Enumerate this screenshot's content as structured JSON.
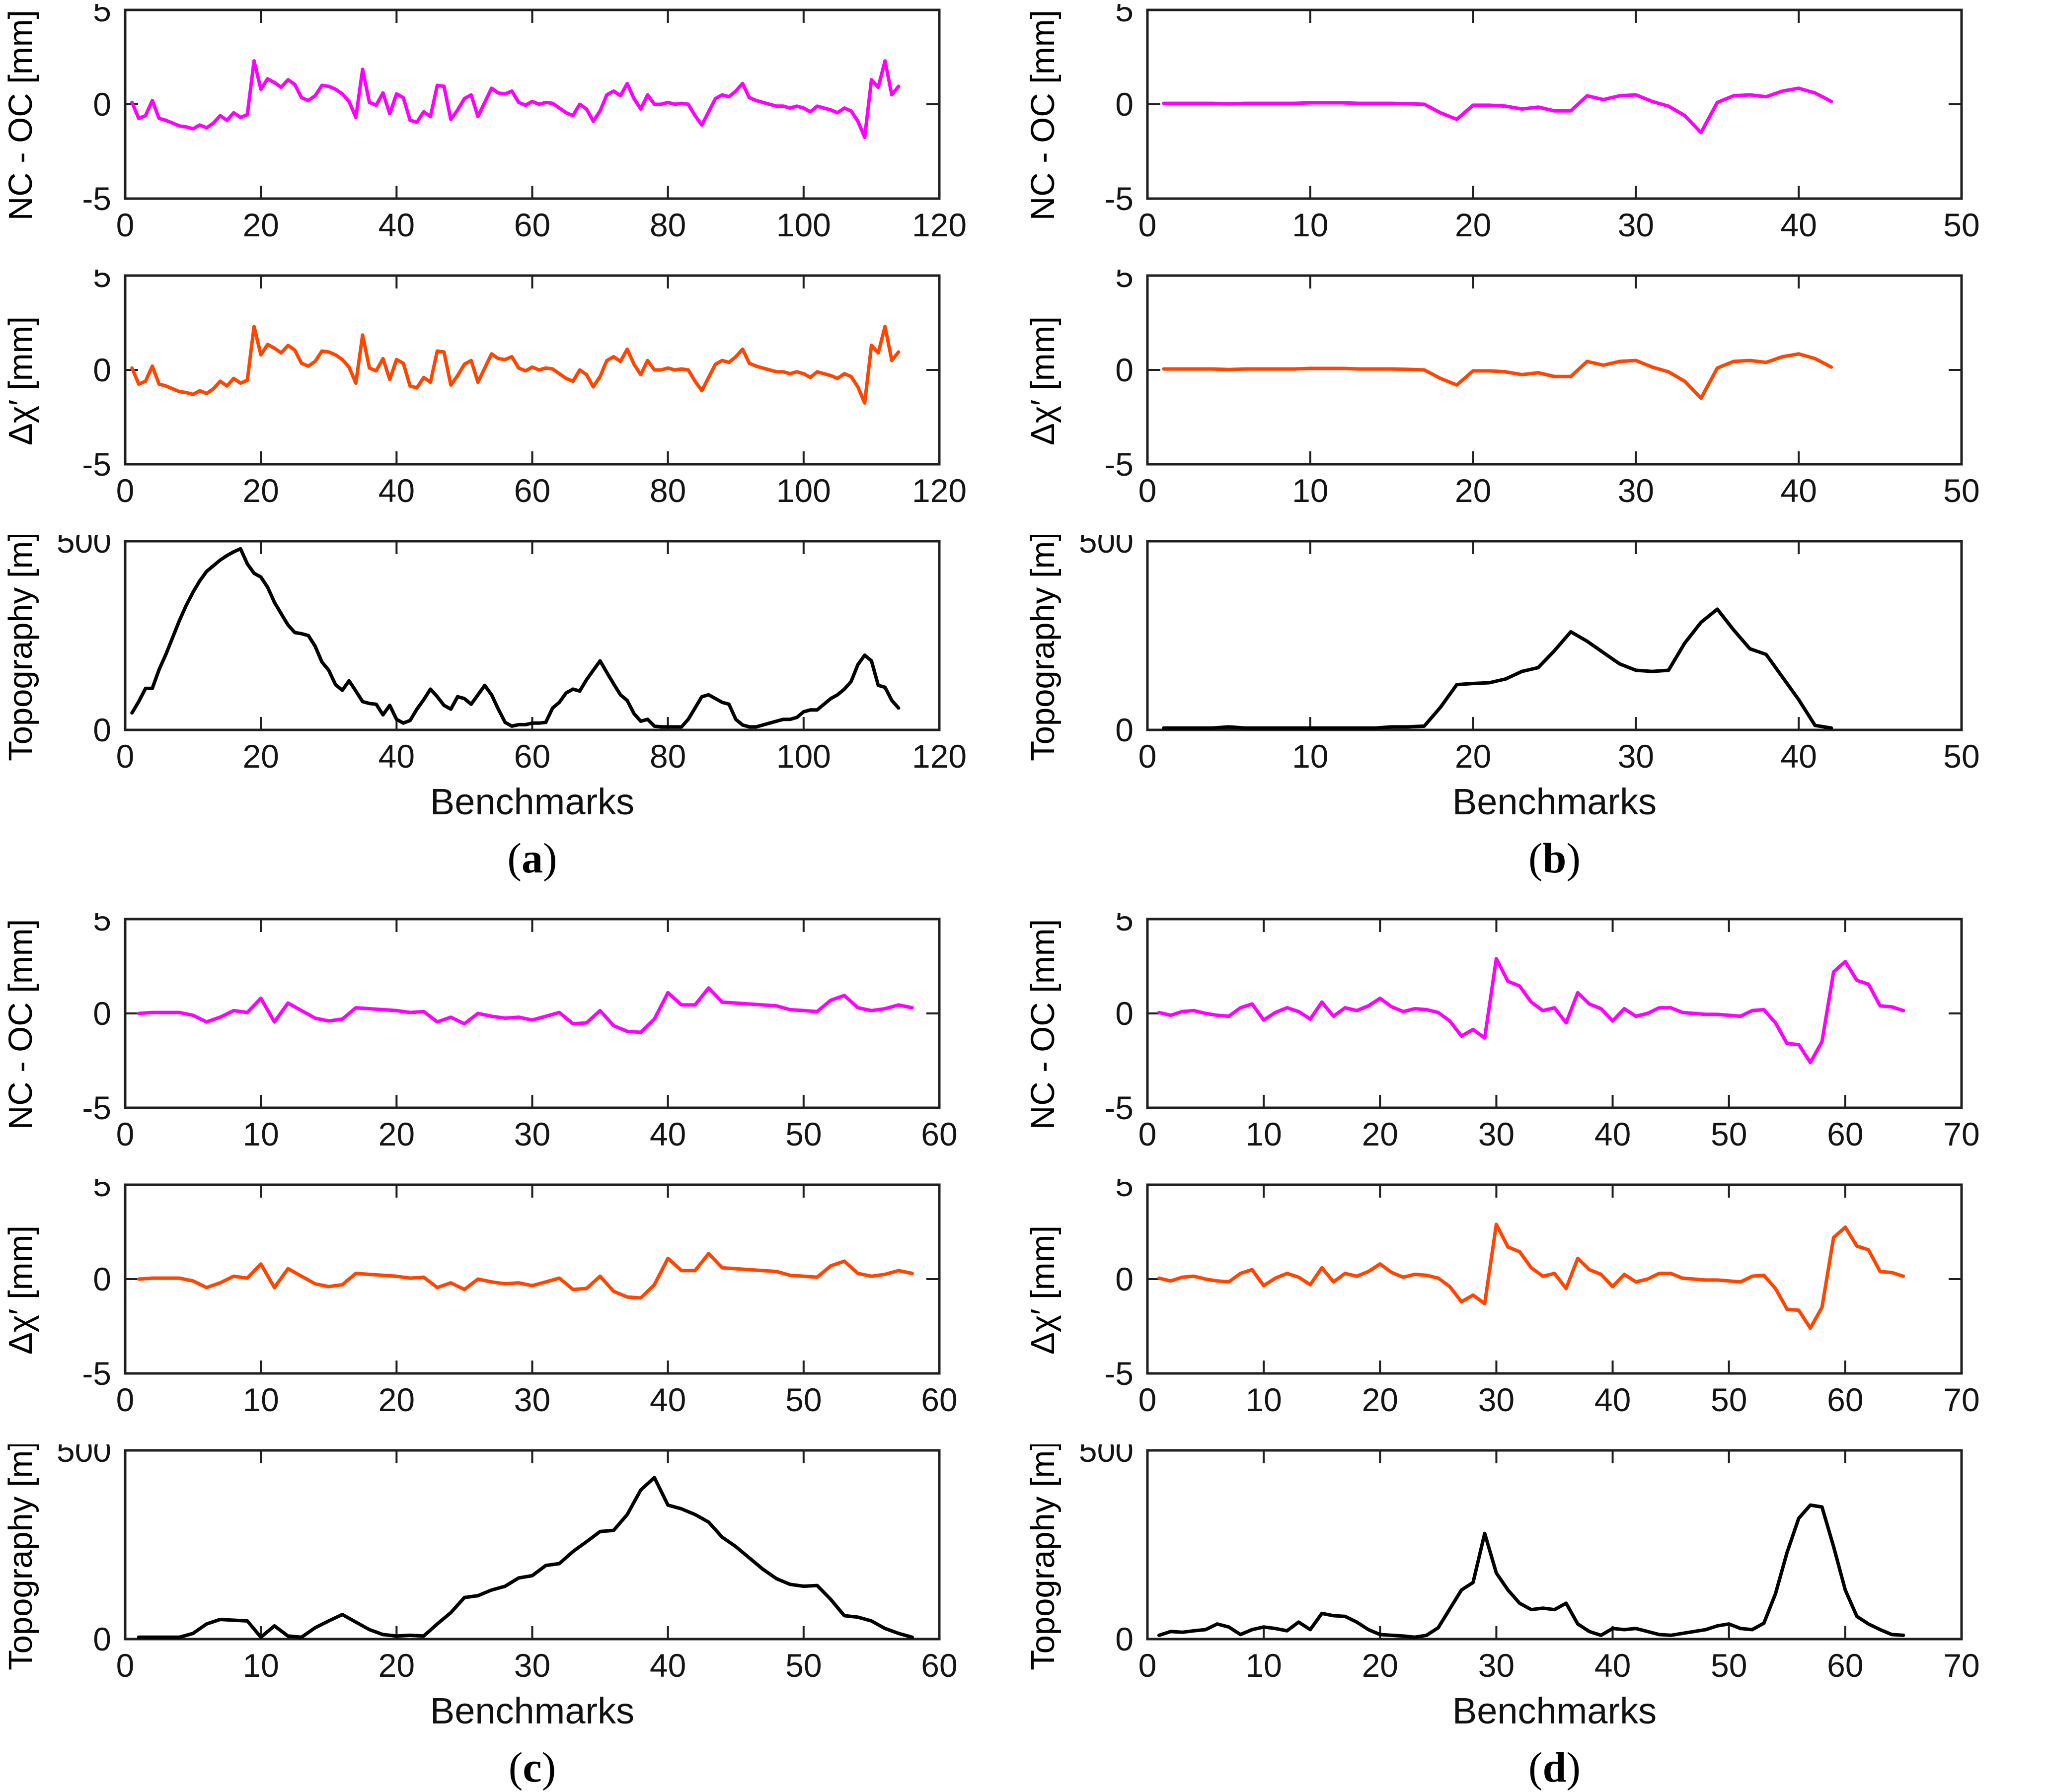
{
  "figure": {
    "colors": {
      "nc_oc_line": "#FF00FF",
      "delta_chi_line": "#FF4500",
      "topography_line": "#000000",
      "axis": "#1F1F1F",
      "text": "#141414"
    },
    "x_axis_title": "Benchmarks",
    "caption_labels": [
      "(a)",
      "(b)",
      "(c)",
      "(d)"
    ]
  },
  "chart_data": [
    {
      "id": "a",
      "label": "(a)",
      "type": "line",
      "xlabel": "Benchmarks",
      "x_start": 1,
      "x_step": 1,
      "xlim": [
        0,
        120
      ],
      "xticks": [
        0,
        20,
        40,
        60,
        80,
        100,
        120
      ],
      "subplots": [
        {
          "name": "nc-oc",
          "ylabel": "NC - OC [mm]",
          "ylim": [
            -5,
            5
          ],
          "yticks": [
            5,
            0,
            -5
          ],
          "color": "#FF00FF",
          "values": [
            0.1,
            -0.75,
            -0.6,
            0.2,
            -0.75,
            -0.85,
            -1.0,
            -1.15,
            -1.2,
            -1.3,
            -1.1,
            -1.25,
            -1.0,
            -0.6,
            -0.85,
            -0.45,
            -0.7,
            -0.55,
            2.3,
            0.8,
            1.35,
            1.15,
            0.9,
            1.3,
            1.05,
            0.35,
            0.2,
            0.45,
            1.0,
            0.95,
            0.8,
            0.55,
            0.15,
            -0.7,
            1.85,
            0.1,
            -0.05,
            0.6,
            -0.5,
            0.55,
            0.35,
            -0.85,
            -0.95,
            -0.4,
            -0.65,
            1.0,
            0.95,
            -0.8,
            -0.3,
            0.3,
            0.5,
            -0.65,
            0.1,
            0.85,
            0.6,
            0.55,
            0.7,
            0.1,
            -0.05,
            0.15,
            0.0,
            0.1,
            0.05,
            -0.2,
            -0.45,
            -0.6,
            0.0,
            -0.25,
            -0.9,
            -0.35,
            0.5,
            0.7,
            0.45,
            1.1,
            0.3,
            -0.25,
            0.5,
            0.0,
            0.0,
            0.1,
            0.0,
            0.05,
            0.0,
            -0.6,
            -1.1,
            -0.4,
            0.3,
            0.5,
            0.4,
            0.7,
            1.1,
            0.35,
            0.2,
            0.1,
            0.0,
            -0.1,
            -0.1,
            -0.2,
            -0.1,
            -0.2,
            -0.4,
            -0.1,
            -0.2,
            -0.3,
            -0.45,
            -0.2,
            -0.35,
            -0.9,
            -1.75,
            1.3,
            0.9,
            2.3,
            0.5,
            0.95
          ]
        },
        {
          "name": "delta-chi-prime",
          "ylabel": "Δχ′ [mm]",
          "ylim": [
            -5,
            5
          ],
          "yticks": [
            5,
            0,
            -5
          ],
          "color": "#FF4500",
          "values": [
            0.1,
            -0.75,
            -0.6,
            0.2,
            -0.75,
            -0.85,
            -1.0,
            -1.15,
            -1.2,
            -1.3,
            -1.1,
            -1.25,
            -1.0,
            -0.6,
            -0.85,
            -0.45,
            -0.7,
            -0.55,
            2.3,
            0.8,
            1.35,
            1.15,
            0.9,
            1.3,
            1.05,
            0.35,
            0.2,
            0.45,
            1.0,
            0.95,
            0.8,
            0.55,
            0.15,
            -0.7,
            1.85,
            0.1,
            -0.05,
            0.6,
            -0.5,
            0.55,
            0.35,
            -0.85,
            -0.95,
            -0.4,
            -0.65,
            1.0,
            0.95,
            -0.8,
            -0.3,
            0.3,
            0.5,
            -0.65,
            0.1,
            0.85,
            0.6,
            0.55,
            0.7,
            0.1,
            -0.05,
            0.15,
            0.0,
            0.1,
            0.05,
            -0.2,
            -0.45,
            -0.6,
            0.0,
            -0.25,
            -0.9,
            -0.35,
            0.5,
            0.7,
            0.45,
            1.1,
            0.3,
            -0.25,
            0.5,
            0.0,
            0.0,
            0.1,
            0.0,
            0.05,
            0.0,
            -0.6,
            -1.1,
            -0.4,
            0.3,
            0.5,
            0.4,
            0.7,
            1.1,
            0.35,
            0.2,
            0.1,
            0.0,
            -0.1,
            -0.1,
            -0.2,
            -0.1,
            -0.2,
            -0.4,
            -0.1,
            -0.2,
            -0.3,
            -0.45,
            -0.2,
            -0.35,
            -0.9,
            -1.75,
            1.3,
            0.9,
            2.3,
            0.5,
            0.95
          ]
        },
        {
          "name": "topography",
          "ylabel": "Topography [m]",
          "ylim": [
            0,
            500
          ],
          "yticks": [
            500,
            0
          ],
          "color": "#000000",
          "values": [
            45,
            75,
            110,
            110,
            160,
            200,
            245,
            290,
            330,
            365,
            395,
            420,
            435,
            450,
            462,
            472,
            480,
            440,
            415,
            405,
            378,
            338,
            308,
            278,
            258,
            255,
            250,
            222,
            180,
            158,
            120,
            105,
            130,
            103,
            75,
            70,
            68,
            40,
            65,
            28,
            18,
            25,
            55,
            80,
            108,
            88,
            65,
            55,
            88,
            83,
            68,
            93,
            118,
            93,
            55,
            20,
            10,
            14,
            14,
            18,
            18,
            20,
            58,
            73,
            98,
            108,
            103,
            133,
            158,
            183,
            152,
            122,
            93,
            78,
            43,
            23,
            28,
            10,
            8,
            8,
            8,
            8,
            28,
            58,
            88,
            93,
            83,
            73,
            68,
            28,
            13,
            8,
            8,
            13,
            18,
            23,
            28,
            28,
            33,
            48,
            53,
            53,
            68,
            83,
            93,
            108,
            128,
            173,
            198,
            183,
            118,
            113,
            78,
            58
          ]
        }
      ]
    },
    {
      "id": "b",
      "label": "(b)",
      "type": "line",
      "xlabel": "Benchmarks",
      "x_start": 1,
      "x_step": 1,
      "xlim": [
        0,
        50
      ],
      "xticks": [
        0,
        10,
        20,
        30,
        40,
        50
      ],
      "subplots": [
        {
          "name": "nc-oc",
          "ylabel": "NC - OC [mm]",
          "ylim": [
            -5,
            5
          ],
          "yticks": [
            5,
            0,
            -5
          ],
          "color": "#FF00FF",
          "values": [
            0.05,
            0.05,
            0.05,
            0.05,
            0.02,
            0.05,
            0.05,
            0.05,
            0.05,
            0.08,
            0.08,
            0.08,
            0.05,
            0.05,
            0.05,
            0.03,
            0.0,
            -0.45,
            -0.8,
            -0.05,
            -0.05,
            -0.1,
            -0.25,
            -0.15,
            -0.35,
            -0.35,
            0.45,
            0.25,
            0.45,
            0.5,
            0.15,
            -0.1,
            -0.6,
            -1.5,
            0.1,
            0.45,
            0.5,
            0.4,
            0.7,
            0.85,
            0.6,
            0.15
          ]
        },
        {
          "name": "delta-chi-prime",
          "ylabel": "Δχ′ [mm]",
          "ylim": [
            -5,
            5
          ],
          "yticks": [
            5,
            0,
            -5
          ],
          "color": "#FF4500",
          "values": [
            0.05,
            0.05,
            0.05,
            0.05,
            0.02,
            0.05,
            0.05,
            0.05,
            0.05,
            0.08,
            0.08,
            0.08,
            0.05,
            0.05,
            0.05,
            0.03,
            0.0,
            -0.45,
            -0.8,
            -0.05,
            -0.05,
            -0.1,
            -0.25,
            -0.15,
            -0.35,
            -0.35,
            0.45,
            0.25,
            0.45,
            0.5,
            0.15,
            -0.1,
            -0.6,
            -1.5,
            0.1,
            0.45,
            0.5,
            0.4,
            0.7,
            0.85,
            0.6,
            0.15
          ]
        },
        {
          "name": "topography",
          "ylabel": "Topography [m]",
          "ylim": [
            0,
            500
          ],
          "yticks": [
            500,
            0
          ],
          "color": "#000000",
          "values": [
            5,
            5,
            5,
            5,
            8,
            5,
            5,
            5,
            5,
            5,
            5,
            5,
            5,
            5,
            8,
            8,
            10,
            60,
            120,
            123,
            125,
            135,
            155,
            165,
            210,
            260,
            235,
            205,
            175,
            158,
            155,
            158,
            230,
            285,
            320,
            265,
            215,
            200,
            140,
            80,
            12,
            5
          ]
        }
      ]
    },
    {
      "id": "c",
      "label": "(c)",
      "type": "line",
      "xlabel": "Benchmarks",
      "x_start": 1,
      "x_step": 1,
      "xlim": [
        0,
        60
      ],
      "xticks": [
        0,
        10,
        20,
        30,
        40,
        50,
        60
      ],
      "subplots": [
        {
          "name": "nc-oc",
          "ylabel": "NC - OC [mm]",
          "ylim": [
            -5,
            5
          ],
          "yticks": [
            5,
            0,
            -5
          ],
          "color": "#FF00FF",
          "values": [
            0.0,
            0.05,
            0.05,
            0.05,
            -0.1,
            -0.45,
            -0.2,
            0.15,
            0.05,
            0.8,
            -0.45,
            0.55,
            0.15,
            -0.25,
            -0.4,
            -0.3,
            0.3,
            0.25,
            0.2,
            0.15,
            0.05,
            0.1,
            -0.45,
            -0.2,
            -0.55,
            0.0,
            -0.15,
            -0.25,
            -0.2,
            -0.35,
            -0.15,
            0.05,
            -0.55,
            -0.5,
            0.15,
            -0.65,
            -0.95,
            -1.0,
            -0.3,
            1.1,
            0.45,
            0.45,
            1.35,
            0.6,
            0.55,
            0.5,
            0.45,
            0.4,
            0.2,
            0.15,
            0.1,
            0.7,
            0.95,
            0.3,
            0.15,
            0.25,
            0.45,
            0.3
          ]
        },
        {
          "name": "delta-chi-prime",
          "ylabel": "Δχ′ [mm]",
          "ylim": [
            -5,
            5
          ],
          "yticks": [
            5,
            0,
            -5
          ],
          "color": "#FF4500",
          "values": [
            0.0,
            0.05,
            0.05,
            0.05,
            -0.1,
            -0.45,
            -0.2,
            0.15,
            0.05,
            0.8,
            -0.45,
            0.55,
            0.15,
            -0.25,
            -0.4,
            -0.3,
            0.3,
            0.25,
            0.2,
            0.15,
            0.05,
            0.1,
            -0.45,
            -0.2,
            -0.55,
            0.0,
            -0.15,
            -0.25,
            -0.2,
            -0.35,
            -0.15,
            0.05,
            -0.55,
            -0.5,
            0.15,
            -0.65,
            -0.95,
            -1.0,
            -0.3,
            1.1,
            0.45,
            0.45,
            1.35,
            0.6,
            0.55,
            0.5,
            0.45,
            0.4,
            0.2,
            0.15,
            0.1,
            0.7,
            0.95,
            0.3,
            0.15,
            0.25,
            0.45,
            0.3
          ]
        },
        {
          "name": "topography",
          "ylabel": "Topography [m]",
          "ylim": [
            0,
            500
          ],
          "yticks": [
            500,
            0
          ],
          "color": "#000000",
          "values": [
            5,
            5,
            5,
            5,
            15,
            40,
            52,
            50,
            48,
            5,
            35,
            8,
            5,
            30,
            48,
            65,
            45,
            25,
            12,
            8,
            10,
            8,
            40,
            70,
            110,
            115,
            130,
            140,
            162,
            168,
            195,
            200,
            232,
            258,
            285,
            288,
            330,
            395,
            428,
            355,
            345,
            330,
            310,
            270,
            245,
            215,
            185,
            160,
            145,
            140,
            142,
            105,
            62,
            58,
            48,
            28,
            15,
            5
          ]
        }
      ]
    },
    {
      "id": "d",
      "label": "(d)",
      "type": "line",
      "xlabel": "Benchmarks",
      "x_start": 1,
      "x_step": 1,
      "xlim": [
        0,
        70
      ],
      "xticks": [
        0,
        10,
        20,
        30,
        40,
        50,
        60,
        70
      ],
      "subplots": [
        {
          "name": "nc-oc",
          "ylabel": "NC - OC [mm]",
          "ylim": [
            -5,
            5
          ],
          "yticks": [
            5,
            0,
            -5
          ],
          "color": "#FF00FF",
          "values": [
            0.05,
            -0.1,
            0.1,
            0.15,
            0.0,
            -0.1,
            -0.15,
            0.3,
            0.5,
            -0.35,
            0.05,
            0.3,
            0.1,
            -0.3,
            0.6,
            -0.15,
            0.3,
            0.15,
            0.4,
            0.8,
            0.35,
            0.1,
            0.25,
            0.2,
            0.05,
            -0.4,
            -1.2,
            -0.85,
            -1.3,
            2.9,
            1.7,
            1.45,
            0.6,
            0.15,
            0.3,
            -0.5,
            1.1,
            0.5,
            0.25,
            -0.4,
            0.25,
            -0.15,
            0.0,
            0.3,
            0.3,
            0.05,
            0.0,
            -0.05,
            -0.05,
            -0.1,
            -0.15,
            0.15,
            0.2,
            -0.5,
            -1.6,
            -1.65,
            -2.6,
            -1.5,
            2.2,
            2.75,
            1.75,
            1.55,
            0.4,
            0.35,
            0.15
          ]
        },
        {
          "name": "delta-chi-prime",
          "ylabel": "Δχ′ [mm]",
          "ylim": [
            -5,
            5
          ],
          "yticks": [
            5,
            0,
            -5
          ],
          "color": "#FF4500",
          "values": [
            0.05,
            -0.1,
            0.1,
            0.15,
            0.0,
            -0.1,
            -0.15,
            0.3,
            0.5,
            -0.35,
            0.05,
            0.3,
            0.1,
            -0.3,
            0.6,
            -0.15,
            0.3,
            0.15,
            0.4,
            0.8,
            0.35,
            0.1,
            0.25,
            0.2,
            0.05,
            -0.4,
            -1.2,
            -0.85,
            -1.3,
            2.9,
            1.7,
            1.45,
            0.6,
            0.15,
            0.3,
            -0.5,
            1.1,
            0.5,
            0.25,
            -0.4,
            0.25,
            -0.15,
            0.0,
            0.3,
            0.3,
            0.05,
            0.0,
            -0.05,
            -0.05,
            -0.1,
            -0.15,
            0.15,
            0.2,
            -0.5,
            -1.6,
            -1.65,
            -2.6,
            -1.5,
            2.2,
            2.75,
            1.75,
            1.55,
            0.4,
            0.35,
            0.15
          ]
        },
        {
          "name": "topography",
          "ylabel": "Topography [m]",
          "ylim": [
            0,
            500
          ],
          "yticks": [
            500,
            0
          ],
          "color": "#000000",
          "values": [
            10,
            20,
            18,
            22,
            25,
            40,
            32,
            12,
            25,
            32,
            28,
            22,
            45,
            25,
            68,
            62,
            60,
            45,
            25,
            12,
            10,
            8,
            5,
            10,
            30,
            80,
            130,
            150,
            280,
            175,
            130,
            95,
            78,
            82,
            78,
            95,
            40,
            20,
            10,
            28,
            25,
            28,
            20,
            12,
            10,
            15,
            20,
            25,
            35,
            40,
            28,
            25,
            42,
            120,
            230,
            320,
            355,
            350,
            245,
            130,
            60,
            40,
            25,
            12,
            10
          ]
        }
      ]
    }
  ]
}
